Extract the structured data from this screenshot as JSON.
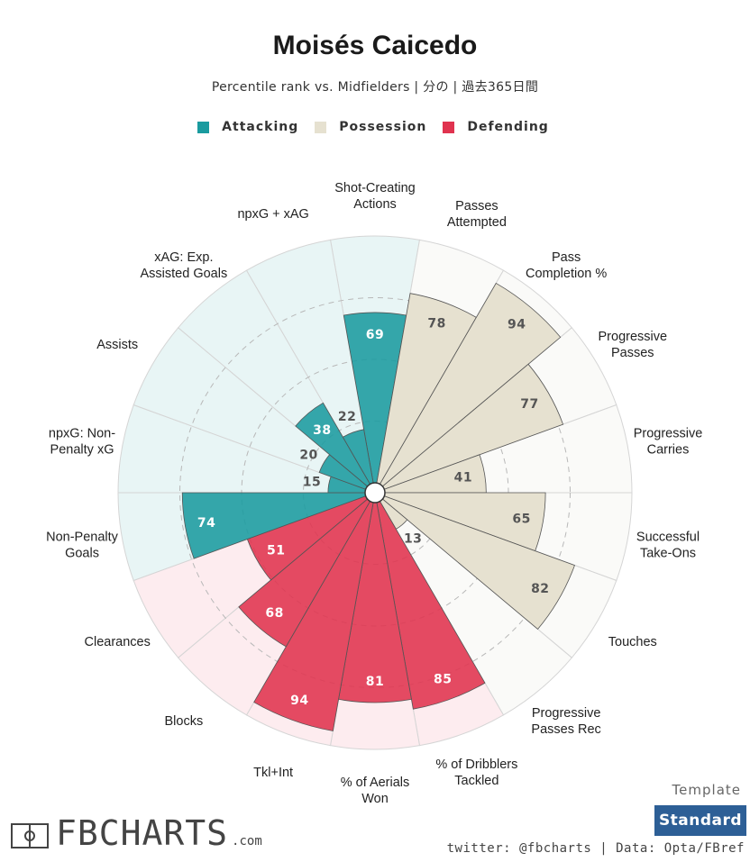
{
  "header": {
    "title": "Moisés Caicedo",
    "subtitle": "Percentile rank vs. Midfielders | 分の | 過去365日間"
  },
  "legend": [
    {
      "label": "Attacking",
      "color": "#1a9b9f"
    },
    {
      "label": "Possession",
      "color": "#e6e1d0"
    },
    {
      "label": "Defending",
      "color": "#e0334f"
    }
  ],
  "chart_data": {
    "type": "polar-bar",
    "scale": [
      0,
      100
    ],
    "metrics": [
      {
        "label": "Shot-Creating\nActions",
        "value": 69,
        "group": "Attacking"
      },
      {
        "label": "Passes\nAttempted",
        "value": 78,
        "group": "Possession"
      },
      {
        "label": "Pass\nCompletion %",
        "value": 94,
        "group": "Possession"
      },
      {
        "label": "Progressive\nPasses",
        "value": 77,
        "group": "Possession"
      },
      {
        "label": "Progressive\nCarries",
        "value": 41,
        "group": "Possession"
      },
      {
        "label": "Successful\nTake-Ons",
        "value": 65,
        "group": "Possession"
      },
      {
        "label": "Touches",
        "value": 82,
        "group": "Possession"
      },
      {
        "label": "Progressive\nPasses Rec",
        "value": 13,
        "group": "Possession"
      },
      {
        "label": "% of Dribblers\nTackled",
        "value": 85,
        "group": "Defending"
      },
      {
        "label": "% of Aerials\nWon",
        "value": 81,
        "group": "Defending"
      },
      {
        "label": "Tkl+Int",
        "value": 94,
        "group": "Defending"
      },
      {
        "label": "Blocks",
        "value": 68,
        "group": "Defending"
      },
      {
        "label": "Clearances",
        "value": 51,
        "group": "Defending"
      },
      {
        "label": "Non-Penalty\nGoals",
        "value": 74,
        "group": "Attacking"
      },
      {
        "label": "npxG: Non-\nPenalty xG",
        "value": 15,
        "group": "Attacking"
      },
      {
        "label": "Assists",
        "value": 20,
        "group": "Attacking"
      },
      {
        "label": "xAG: Exp.\nAssisted Goals",
        "value": 38,
        "group": "Attacking"
      },
      {
        "label": "npxG + xAG",
        "value": 22,
        "group": "Attacking"
      }
    ],
    "colors": {
      "Attacking": {
        "fill": "#1a9b9f",
        "bg": "#e8f5f5",
        "text": "#ffffff"
      },
      "Possession": {
        "fill": "#e6e1d0",
        "bg": "#fafaf8",
        "text": "#555555"
      },
      "Defending": {
        "fill": "#e0334f",
        "bg": "#fdecef",
        "text": "#ffffff"
      }
    }
  },
  "footer": {
    "template_label": "Template",
    "template_button": "Standard",
    "credit": "twitter: @fbcharts | Data: Opta/FBref",
    "logo_text": "FBCHARTS",
    "logo_suffix": ".com"
  }
}
